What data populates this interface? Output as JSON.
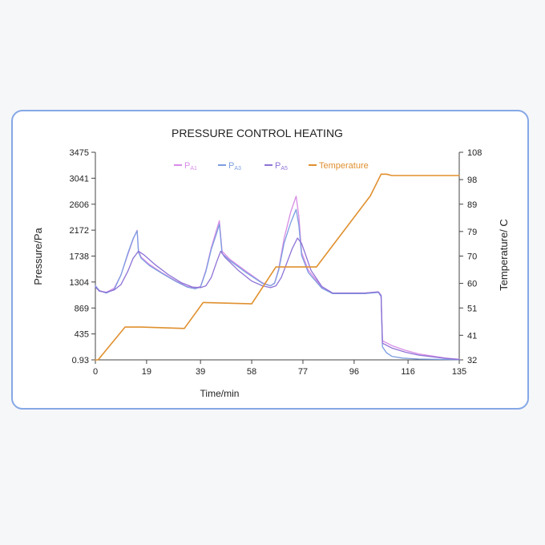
{
  "chart_data": {
    "type": "line",
    "title": "PRESSURE CONTROL HEATING",
    "xlabel": "Time/min",
    "ylabel": "Pressure/Pa",
    "y2label": "Temperature/ C",
    "xlim": [
      0,
      135
    ],
    "ylim": [
      0.93,
      3475
    ],
    "y2lim": [
      32,
      108
    ],
    "x_ticks": [
      "0",
      "19",
      "39",
      "58",
      "77",
      "96",
      "116",
      "135"
    ],
    "x_tick_values": [
      0,
      19,
      39,
      58,
      77,
      96,
      116,
      135
    ],
    "y_ticks": [
      "0.93",
      "435",
      "869",
      "1304",
      "1738",
      "2172",
      "2606",
      "3041",
      "3475"
    ],
    "y_tick_values": [
      0.93,
      435,
      869,
      1304,
      1738,
      2172,
      2606,
      3041,
      3475
    ],
    "y2_ticks": [
      "32",
      "41",
      "51",
      "60",
      "70",
      "79",
      "89",
      "98",
      "108"
    ],
    "y2_tick_values": [
      32,
      41,
      51,
      60,
      70,
      79,
      89,
      98,
      108
    ],
    "legend_position": "top",
    "series": [
      {
        "name": "PA1",
        "name_main": "P",
        "name_sub": "A1",
        "axis": "left",
        "color": "#d78ce6",
        "x": [
          0,
          1.5,
          4,
          7,
          9.5,
          12,
          14,
          15.5,
          16,
          17,
          20,
          25,
          30,
          34,
          37,
          39,
          41,
          43,
          45,
          46,
          47,
          50,
          56,
          62,
          65,
          66.5,
          68,
          70,
          72.5,
          74.5,
          75.5,
          76.5,
          79,
          84,
          88,
          100,
          105,
          106,
          106.5,
          110,
          115,
          120,
          130,
          135
        ],
        "y": [
          1240,
          1160,
          1130,
          1200,
          1420,
          1760,
          2020,
          2170,
          1820,
          1720,
          1600,
          1450,
          1320,
          1230,
          1200,
          1230,
          1500,
          1880,
          2180,
          2330,
          1820,
          1680,
          1480,
          1290,
          1240,
          1290,
          1520,
          2030,
          2480,
          2740,
          2400,
          1800,
          1500,
          1220,
          1120,
          1120,
          1140,
          1080,
          320,
          240,
          160,
          100,
          30,
          10
        ]
      },
      {
        "name": "PA3",
        "name_main": "P",
        "name_sub": "A3",
        "axis": "left",
        "color": "#7b9de0",
        "x": [
          0,
          1.5,
          4,
          7,
          9.5,
          12,
          14,
          15.5,
          16,
          17,
          20,
          25,
          30,
          34,
          37,
          39,
          41,
          43,
          45,
          46,
          47,
          50,
          56,
          62,
          65,
          66.5,
          68,
          70,
          72.5,
          74.5,
          75.5,
          76.5,
          79,
          84,
          88,
          100,
          105,
          106,
          106.5,
          108,
          110,
          114,
          120,
          130,
          135
        ],
        "y": [
          1240,
          1160,
          1120,
          1180,
          1420,
          1780,
          2030,
          2160,
          1800,
          1700,
          1580,
          1440,
          1310,
          1220,
          1190,
          1220,
          1480,
          1850,
          2120,
          2270,
          1780,
          1660,
          1460,
          1280,
          1240,
          1280,
          1500,
          1950,
          2300,
          2520,
          2250,
          1750,
          1460,
          1200,
          1110,
          1110,
          1130,
          1060,
          220,
          120,
          60,
          30,
          15,
          8,
          5
        ]
      },
      {
        "name": "PA5",
        "name_main": "P",
        "name_sub": "A5",
        "axis": "left",
        "color": "#8e72d6",
        "x": [
          0,
          1.5,
          4,
          7,
          9.5,
          12,
          14,
          16,
          18,
          22,
          27,
          32,
          36,
          39,
          41,
          43,
          45,
          46.5,
          48,
          53,
          58,
          62,
          65,
          67,
          69,
          71,
          73,
          75,
          76.5,
          78,
          80,
          84,
          88,
          100,
          105,
          106,
          106.5,
          110,
          115,
          120,
          130,
          135
        ],
        "y": [
          1220,
          1150,
          1130,
          1170,
          1260,
          1480,
          1700,
          1820,
          1760,
          1600,
          1430,
          1290,
          1220,
          1210,
          1240,
          1380,
          1640,
          1820,
          1720,
          1500,
          1320,
          1240,
          1210,
          1240,
          1380,
          1620,
          1860,
          2040,
          1950,
          1760,
          1500,
          1230,
          1120,
          1120,
          1140,
          1080,
          280,
          200,
          130,
          80,
          25,
          8
        ]
      },
      {
        "name": "Temperature",
        "axis": "right",
        "color": "#e0902f",
        "x": [
          0,
          1,
          11,
          17,
          33,
          40,
          58,
          67,
          82,
          102,
          106,
          108,
          110,
          120,
          135
        ],
        "y": [
          32,
          32,
          44,
          44,
          43.5,
          53,
          52.5,
          66,
          66,
          92,
          100,
          100,
          99.5,
          99.5,
          99.5
        ]
      }
    ]
  }
}
